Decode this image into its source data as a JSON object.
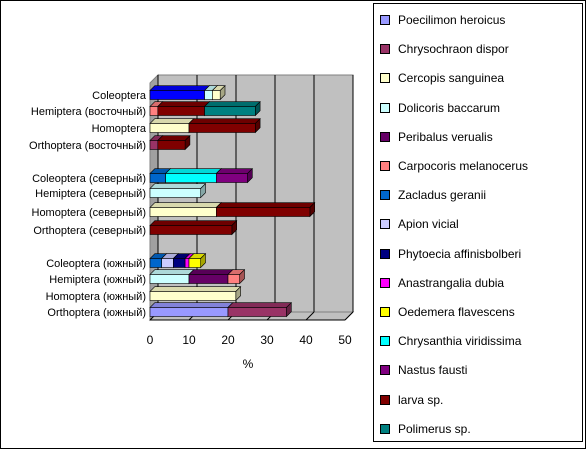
{
  "chart_data": {
    "type": "bar",
    "orientation": "horizontal",
    "stacked": true,
    "style": "3d",
    "xlabel": "%",
    "xlim": [
      0,
      50
    ],
    "xticks": [
      0,
      10,
      20,
      30,
      40,
      50
    ],
    "grid": true,
    "legend_position": "right",
    "categories": [
      "Coleoptera",
      "Hemiptera (восточный)",
      "Homoptera",
      "Orthoptera (восточный)",
      "",
      "Coleoptera (северный)",
      "Hemiptera (северный)",
      "Homoptera (северный)",
      "Orthoptera (северный)",
      "",
      "Coleoptera (южный)",
      "Hemiptera (южный)",
      "Homoptera (южный)",
      "Orthoptera (южный)"
    ],
    "series": [
      {
        "name": "Poecilimon heroicus",
        "color": "#9999ff",
        "values": [
          0,
          0,
          0,
          0,
          0,
          0,
          0,
          0,
          0,
          0,
          0,
          0,
          0,
          20
        ]
      },
      {
        "name": "Chrysochraon dispor",
        "color": "#993366",
        "values": [
          0,
          0,
          0,
          2,
          0,
          0,
          0,
          0,
          0,
          0,
          0,
          0,
          0,
          15
        ]
      },
      {
        "name": "Cercopis sanguinea",
        "color": "#ffffcc",
        "values": [
          0,
          0,
          10,
          0,
          0,
          0,
          0,
          17,
          0,
          0,
          0,
          0,
          22,
          0
        ]
      },
      {
        "name": "Dolicoris baccarum",
        "color": "#ccffff",
        "values": [
          0,
          0,
          0,
          0,
          0,
          0,
          13,
          0,
          0,
          0,
          0,
          10,
          0,
          0
        ]
      },
      {
        "name": "Peribalus verualis",
        "color": "#660066",
        "values": [
          0,
          0,
          0,
          0,
          0,
          0,
          0,
          0,
          0,
          0,
          0,
          10,
          0,
          0
        ]
      },
      {
        "name": "Carpocoris melanocerus",
        "color": "#ff8080",
        "values": [
          0,
          2,
          0,
          0,
          0,
          0,
          0,
          0,
          0,
          0,
          0,
          3,
          0,
          0
        ]
      },
      {
        "name": "Zacladus geranii",
        "color": "#0066cc",
        "values": [
          0,
          0,
          0,
          0,
          0,
          4,
          0,
          0,
          0,
          0,
          3,
          0,
          0,
          0
        ]
      },
      {
        "name": "Apion vicial",
        "color": "#ccccff",
        "values": [
          0,
          0,
          0,
          0,
          0,
          0,
          0,
          0,
          0,
          0,
          3,
          0,
          0,
          0
        ]
      },
      {
        "name": "Phytoecia affinisbolberi",
        "color": "#000080",
        "values": [
          0,
          0,
          0,
          0,
          0,
          0,
          0,
          0,
          0,
          0,
          3,
          0,
          0,
          0
        ]
      },
      {
        "name": "Anastrangalia dubia",
        "color": "#ff00ff",
        "values": [
          0,
          0,
          0,
          0,
          0,
          0,
          0,
          0,
          0,
          0,
          1,
          0,
          0,
          0
        ]
      },
      {
        "name": "Oedemera flavescens",
        "color": "#ffff00",
        "values": [
          0,
          0,
          0,
          0,
          0,
          0,
          0,
          0,
          0,
          0,
          3,
          0,
          0,
          0
        ]
      },
      {
        "name": "Chrysanthia viridissima",
        "color": "#00ffff",
        "values": [
          0,
          0,
          0,
          0,
          0,
          13,
          0,
          0,
          0,
          0,
          0,
          0,
          0,
          0
        ]
      },
      {
        "name": "Nastus fausti",
        "color": "#800080",
        "values": [
          0,
          0,
          0,
          0,
          0,
          8,
          0,
          0,
          0,
          0,
          0,
          0,
          0,
          0
        ]
      },
      {
        "name": "larva sp.",
        "color": "#800000",
        "values": [
          0,
          12,
          17,
          7,
          0,
          0,
          0,
          24,
          21,
          0,
          0,
          0,
          0,
          0
        ]
      },
      {
        "name": "Polimerus sp.",
        "color": "#008080",
        "values": [
          0,
          13,
          0,
          0,
          0,
          0,
          0,
          0,
          0,
          0,
          0,
          0,
          0,
          0
        ]
      }
    ],
    "extra_segments_note_free": []
  },
  "coleoptera_east": [
    {
      "color": "#0000ff",
      "value": 14
    },
    {
      "color": "#ccffff",
      "value": 2
    },
    {
      "color": "#ffffcc",
      "value": 2
    }
  ]
}
